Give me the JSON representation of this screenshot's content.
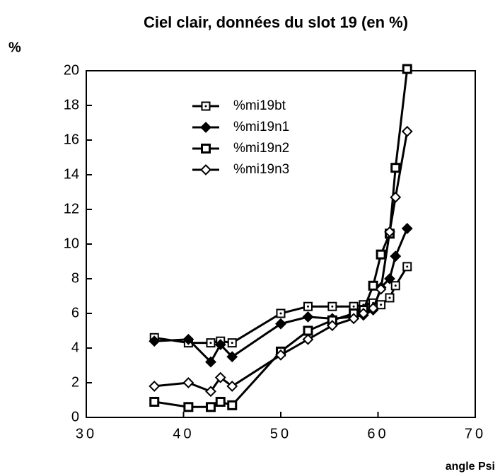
{
  "chart_data": {
    "type": "line",
    "title": "Ciel clair, données du slot 19 (en %)",
    "y_label": "%",
    "x_label": "angle Psi",
    "x": [
      37,
      40.5,
      42.8,
      43.8,
      45,
      50,
      52.8,
      55.3,
      57.5,
      58.5,
      59.5,
      60.3,
      61.2,
      61.8,
      63
    ],
    "series": [
      {
        "name": "%mi19bt",
        "color": "#000000",
        "marker": "square-dot",
        "values": [
          4.6,
          4.3,
          4.3,
          4.4,
          4.3,
          6.0,
          6.4,
          6.4,
          6.4,
          6.5,
          6.6,
          6.5,
          6.9,
          7.6,
          8.7
        ]
      },
      {
        "name": "%mi19n1",
        "color": "#000000",
        "marker": "diamond-filled",
        "values": [
          4.4,
          4.5,
          3.2,
          4.2,
          3.5,
          5.4,
          5.8,
          5.7,
          5.8,
          5.9,
          6.2,
          7.5,
          8.0,
          9.3,
          10.9
        ]
      },
      {
        "name": "%mi19n2",
        "color": "#000000",
        "marker": "square",
        "values": [
          0.9,
          0.6,
          0.6,
          0.9,
          0.7,
          3.8,
          5.0,
          5.6,
          6.0,
          6.2,
          7.6,
          9.4,
          10.6,
          14.4,
          20.1
        ]
      },
      {
        "name": "%mi19n3",
        "color": "#000000",
        "marker": "diamond-open",
        "values": [
          1.8,
          2.0,
          1.5,
          2.3,
          1.8,
          3.6,
          4.5,
          5.3,
          5.7,
          6.0,
          6.3,
          7.4,
          10.7,
          12.7,
          16.5
        ]
      }
    ],
    "xlim": [
      30,
      70
    ],
    "xticks": [
      30,
      40,
      50,
      60,
      70
    ],
    "ylim": [
      0,
      20
    ],
    "yticks": [
      0,
      2,
      4,
      6,
      8,
      10,
      12,
      14,
      16,
      18,
      20
    ]
  }
}
